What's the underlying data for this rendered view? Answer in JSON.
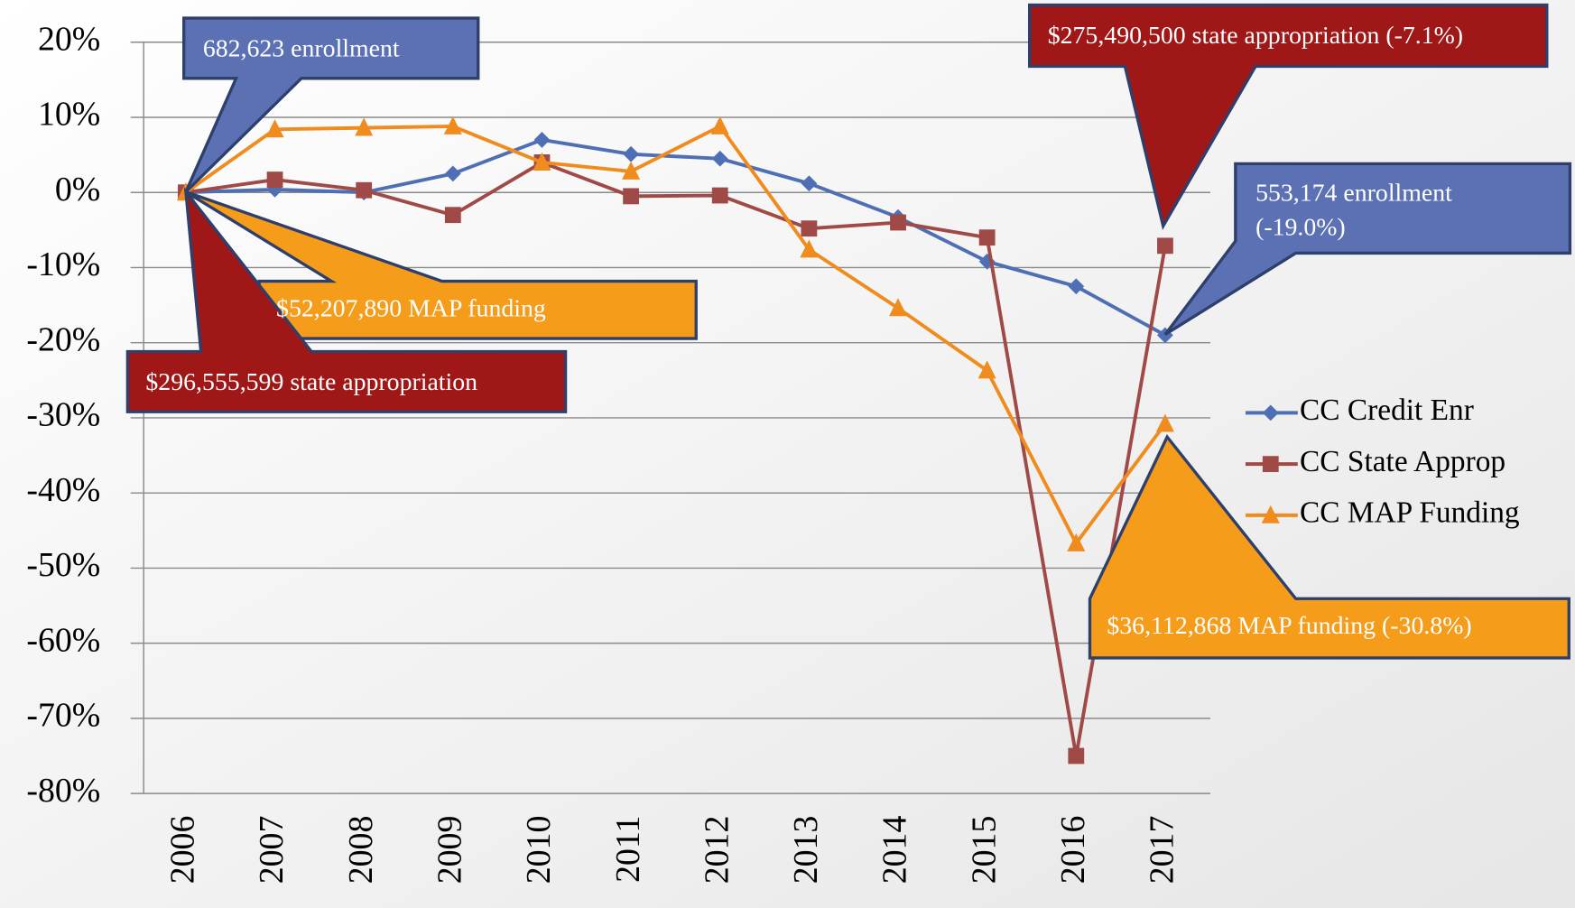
{
  "chart_data": {
    "type": "line",
    "categories": [
      "2006",
      "2007",
      "2008",
      "2009",
      "2010",
      "2011",
      "2012",
      "2013",
      "2014",
      "2015",
      "2016",
      "2017"
    ],
    "series": [
      {
        "name": "CC Credit Enr",
        "color": "#4f6fb5",
        "marker": "diamond",
        "values": [
          0,
          0.4,
          0,
          2.5,
          7,
          5.1,
          4.5,
          1.2,
          -3.3,
          -9.2,
          -12.5,
          -19.0
        ]
      },
      {
        "name": "CC State Approp",
        "color": "#a04a48",
        "marker": "square",
        "values": [
          0,
          1.7,
          0.3,
          -3,
          4,
          -0.5,
          -0.4,
          -4.8,
          -4,
          -6,
          -75,
          -7.1
        ]
      },
      {
        "name": "CC MAP Funding",
        "color": "#f08c1e",
        "marker": "triangle",
        "values": [
          0,
          8.4,
          8.6,
          8.8,
          4,
          2.8,
          8.8,
          -7.6,
          -15.4,
          -23.7,
          -46.7,
          -30.8
        ]
      }
    ],
    "ylim": [
      -80,
      20
    ],
    "yticks": [
      {
        "value": 20,
        "label": "20%"
      },
      {
        "value": 10,
        "label": "10%"
      },
      {
        "value": 0,
        "label": "0%"
      },
      {
        "value": -10,
        "label": "-10%"
      },
      {
        "value": -20,
        "label": "-20%"
      },
      {
        "value": -30,
        "label": "-30%"
      },
      {
        "value": -40,
        "label": "-40%"
      },
      {
        "value": -50,
        "label": "-50%"
      },
      {
        "value": -60,
        "label": "-60%"
      },
      {
        "value": -70,
        "label": "-70%"
      },
      {
        "value": -80,
        "label": "-80%"
      }
    ],
    "grid": true,
    "legend": "right",
    "annotations": [
      [
        "682,623 enrollment"
      ],
      [
        "$275,490,500 state appropriation (-7.1%)"
      ],
      [
        "$52,207,890  MAP funding"
      ],
      [
        "$296,555,599 state appropriation"
      ],
      [
        "553,174 enrollment",
        "(-19.0%)"
      ],
      [
        "$36,112,868  MAP funding (-30.8%)"
      ]
    ]
  }
}
